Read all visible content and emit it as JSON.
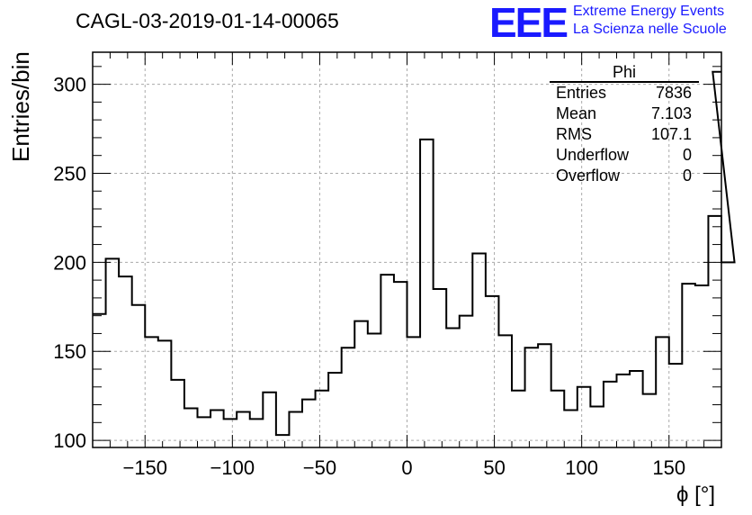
{
  "title": "CAGL-03-2019-01-14-00065",
  "logo": {
    "mark": "EEE",
    "line1": "Extreme Energy Events",
    "line2": "La Scienza nelle Scuole",
    "color": "#1a1aff"
  },
  "stats_box": {
    "title": "Phi",
    "rows": [
      {
        "label": "Entries",
        "value": "7836"
      },
      {
        "label": "Mean",
        "value": "7.103"
      },
      {
        "label": "RMS",
        "value": "107.1"
      },
      {
        "label": "Underflow",
        "value": "0"
      },
      {
        "label": "Overflow",
        "value": "0"
      }
    ]
  },
  "chart_data": {
    "type": "bar",
    "style": "step-histogram",
    "xlabel": "ϕ [°]",
    "ylabel": "Entries/bin",
    "xlim": [
      -180,
      180
    ],
    "ylim": [
      96,
      318
    ],
    "grid": true,
    "x_ticks": [
      -150,
      -100,
      -50,
      0,
      50,
      100,
      150
    ],
    "y_ticks": [
      100,
      150,
      200,
      250,
      300
    ],
    "bin_width": 7.5,
    "values": [
      171,
      202,
      192,
      176,
      158,
      156,
      134,
      118,
      113,
      117,
      112,
      116,
      112,
      127,
      103,
      116,
      123,
      128,
      138,
      152,
      167,
      160,
      193,
      189,
      158,
      269,
      185,
      163,
      170,
      205,
      181,
      159,
      128,
      152,
      154,
      128,
      117,
      130,
      119,
      133,
      137,
      139,
      126,
      158,
      143,
      188,
      187,
      226,
      200
    ],
    "overflow_bin": {
      "range": [
        175,
        180
      ],
      "value": 307
    }
  }
}
